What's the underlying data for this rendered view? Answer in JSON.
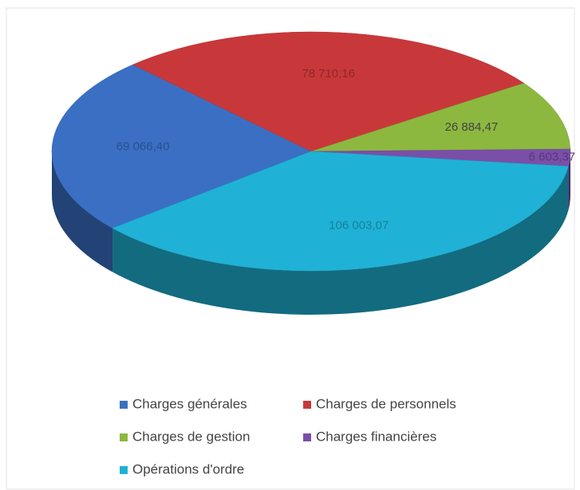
{
  "chart_data": {
    "type": "pie3d",
    "categories": [
      "Charges générales",
      "Charges de personnels",
      "Charges de gestion",
      "Charges financières",
      "Opérations d'ordre"
    ],
    "values": [
      69066.4,
      78710.16,
      26884.47,
      6603.37,
      106003.07
    ],
    "value_labels": [
      "69 066,40",
      "78 710,16",
      "26 884,47",
      "6 603,37",
      "106 003,07"
    ],
    "colors": [
      "#3a6fc4",
      "#c8383a",
      "#8cb83f",
      "#7a4fa8",
      "#1fb2d6"
    ],
    "legend": "bottom"
  }
}
